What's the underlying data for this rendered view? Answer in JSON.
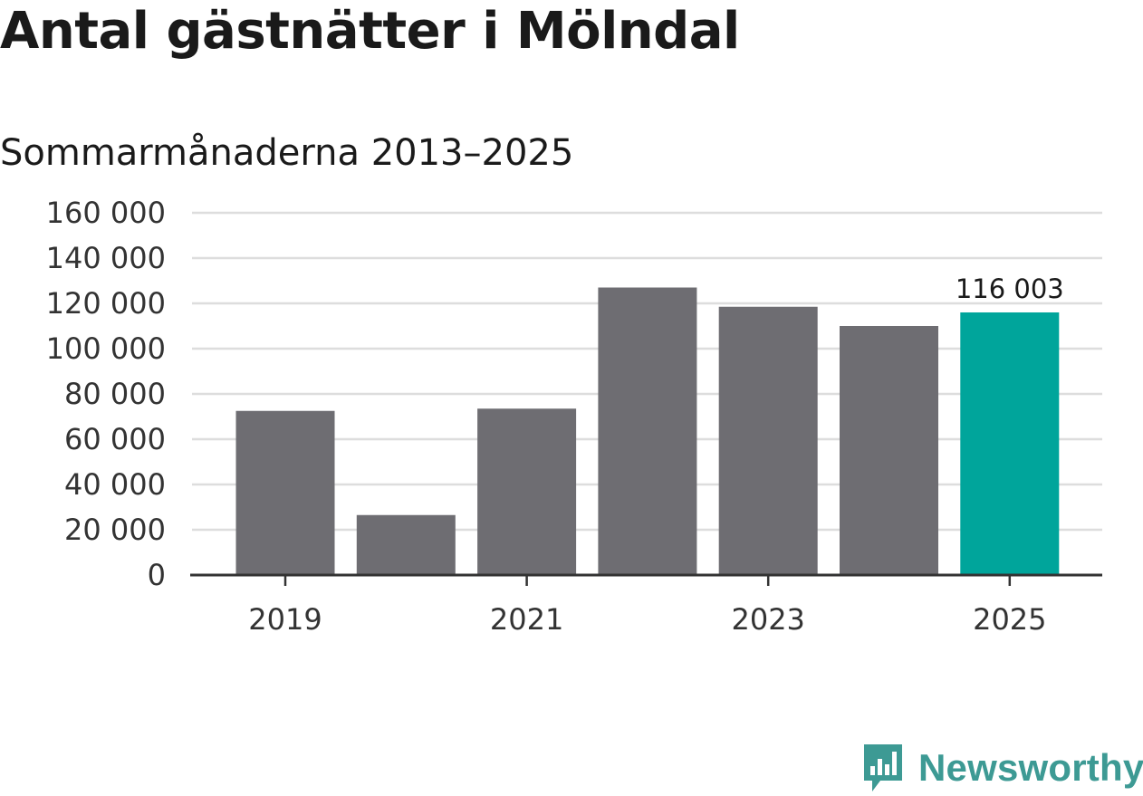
{
  "header": {
    "title": "Antal gästnätter i Mölndal",
    "subtitle": "Sommarmånaderna 2013–2025"
  },
  "colors": {
    "bar_default": "#6e6d72",
    "bar_highlight": "#00a59b",
    "grid": "#dddddd",
    "axis": "#333333",
    "brand": "#3d9a94"
  },
  "chart_data": {
    "type": "bar",
    "title": "Antal gästnätter i Mölndal",
    "subtitle": "Sommarmånaderna 2013–2025",
    "categories": [
      "2019",
      "2020",
      "2021",
      "2022",
      "2023",
      "2024",
      "2025"
    ],
    "values": [
      72500,
      26500,
      73500,
      127000,
      118500,
      110000,
      116003
    ],
    "highlight_index": 6,
    "data_labels": [
      {
        "index": 6,
        "text": "116 003"
      }
    ],
    "x_tick_labels": [
      "2019",
      "2021",
      "2023",
      "2025"
    ],
    "y_tick_labels": [
      "0",
      "20 000",
      "40 000",
      "60 000",
      "80 000",
      "100 000",
      "120 000",
      "140 000",
      "160 000"
    ],
    "y_ticks": [
      0,
      20000,
      40000,
      60000,
      80000,
      100000,
      120000,
      140000,
      160000
    ],
    "ylim": [
      0,
      160000
    ],
    "grid": true,
    "xlabel": "",
    "ylabel": ""
  },
  "brand": {
    "name": "Newsworthy",
    "logo_icon": "bar-chart-speech-bubble-icon"
  }
}
